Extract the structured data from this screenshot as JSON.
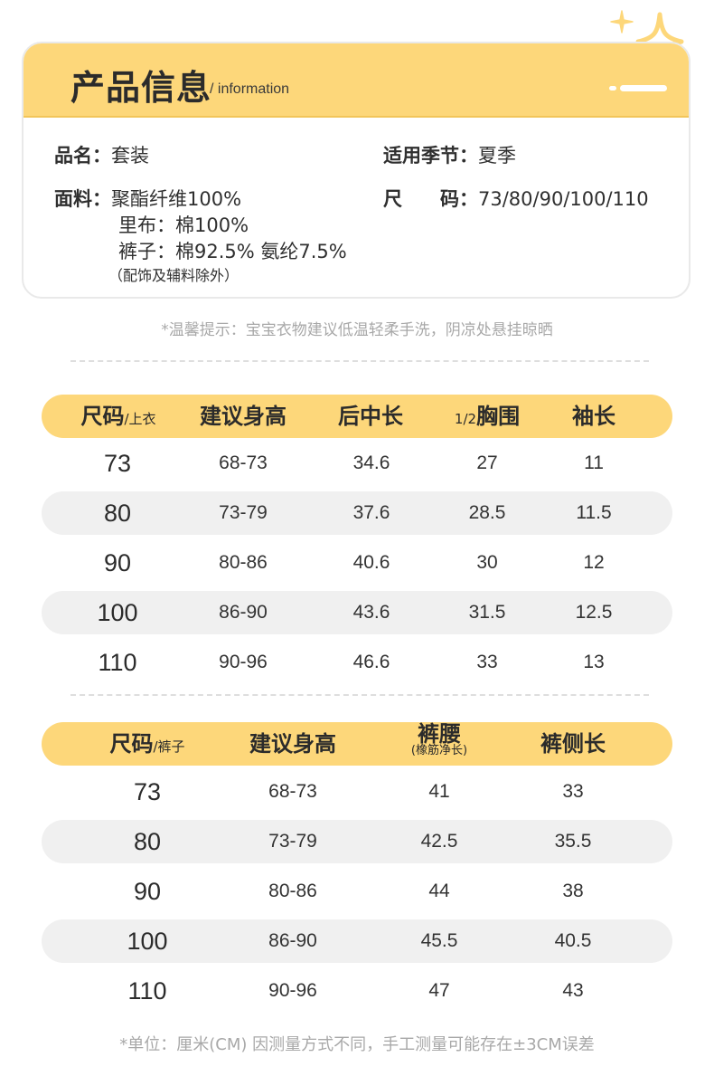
{
  "product_info": {
    "title": "产品信息",
    "subtitle": "/ information",
    "name_label": "品名：",
    "name_value": "套装",
    "season_label": "适用季节：",
    "season_value": "夏季",
    "fabric_label": "面料：",
    "fabric_lines": [
      "聚酯纤维100%",
      "里布：棉100%",
      "裤子：棉92.5% 氨纶7.5%"
    ],
    "fabric_note": "（配饰及辅料除外）",
    "size_label": "尺　　码：",
    "size_value": "73/80/90/100/110"
  },
  "tip": "*温馨提示：宝宝衣物建议低温轻柔手洗，阴凉处悬挂晾晒",
  "top_table": {
    "headers": [
      {
        "main": "尺码",
        "small": "/上衣"
      },
      {
        "main": "建议身高"
      },
      {
        "main": "后中长"
      },
      {
        "main": "胸围",
        "prefix": "1/2"
      },
      {
        "main": "袖长"
      }
    ],
    "rows": [
      [
        "73",
        "68-73",
        "34.6",
        "27",
        "11"
      ],
      [
        "80",
        "73-79",
        "37.6",
        "28.5",
        "11.5"
      ],
      [
        "90",
        "80-86",
        "40.6",
        "30",
        "12"
      ],
      [
        "100",
        "86-90",
        "43.6",
        "31.5",
        "12.5"
      ],
      [
        "110",
        "90-96",
        "46.6",
        "33",
        "13"
      ]
    ]
  },
  "pants_table": {
    "headers": [
      {
        "main": "尺码",
        "small": "/裤子"
      },
      {
        "main": "建议身高"
      },
      {
        "main": "裤腰",
        "sub": "(橡筋净长)"
      },
      {
        "main": "裤侧长"
      }
    ],
    "rows": [
      [
        "73",
        "68-73",
        "41",
        "33"
      ],
      [
        "80",
        "73-79",
        "42.5",
        "35.5"
      ],
      [
        "90",
        "80-86",
        "44",
        "38"
      ],
      [
        "100",
        "86-90",
        "45.5",
        "40.5"
      ],
      [
        "110",
        "90-96",
        "47",
        "43"
      ]
    ]
  },
  "footnote": "*单位：厘米(CM) 因测量方式不同，手工测量可能存在±3CM误差",
  "colors": {
    "accent": "#fdd77a",
    "row_shade": "#f0f0f0",
    "muted_text": "#a8a8a8"
  }
}
